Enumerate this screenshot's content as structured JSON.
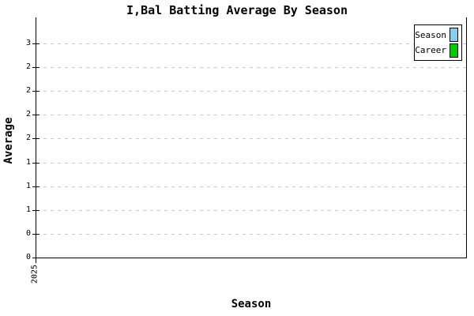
{
  "chart_data": {
    "type": "line",
    "title": "I,Bal Batting Average By Season",
    "xlabel": "Season",
    "ylabel": "Average",
    "categories": [
      "2025"
    ],
    "x_tick_labels": [
      "2025"
    ],
    "y_tick_labels_top_to_bottom": [
      "3",
      "2",
      "2",
      "2",
      "2",
      "1",
      "1",
      "1",
      "0",
      "0"
    ],
    "ylim": [
      0,
      2.7
    ],
    "y_tick_step": 0.3,
    "grid": "horizontal-dashed",
    "gridline_color": "#c8c8c8",
    "axis_color": "#000000",
    "background_color": "#ffffff",
    "legend_position": "top-right",
    "series": [
      {
        "name": "Season",
        "color": "#87CEEB",
        "values": []
      },
      {
        "name": "Career",
        "color": "#00CC00",
        "values": []
      }
    ]
  },
  "legend": {
    "items": [
      {
        "label": "Season",
        "color": "#87CEEB"
      },
      {
        "label": "Career",
        "color": "#00CC00"
      }
    ]
  }
}
